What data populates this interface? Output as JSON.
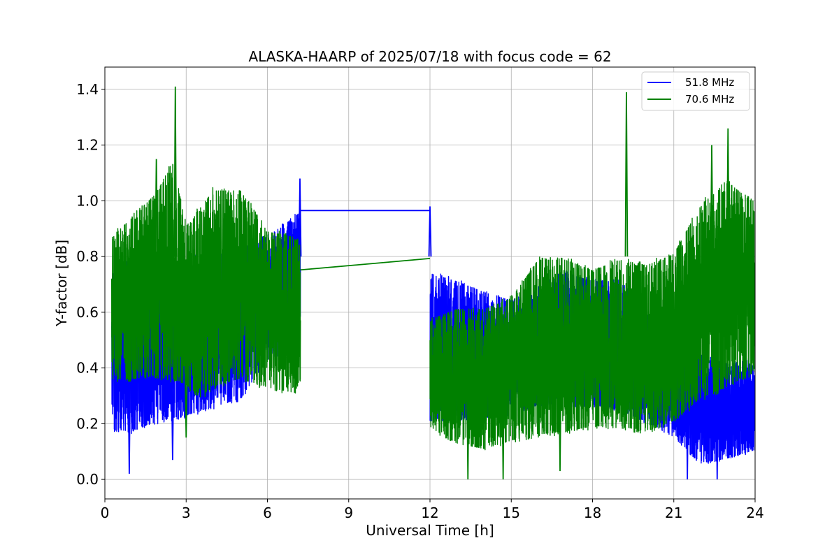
{
  "chart_data": {
    "type": "line",
    "title": "ALASKA-HAARP of 2025/07/18 with focus code = 62",
    "xlabel": "Universal Time [h]",
    "ylabel": "Y-factor [dB]",
    "xlim": [
      0,
      24
    ],
    "ylim": [
      -0.07,
      1.48
    ],
    "xticks": [
      0,
      3,
      6,
      9,
      12,
      15,
      18,
      21,
      24
    ],
    "xtick_labels": [
      "0",
      "3",
      "6",
      "9",
      "12",
      "15",
      "18",
      "21",
      "24"
    ],
    "yticks": [
      0.0,
      0.2,
      0.4,
      0.6,
      0.8,
      1.0,
      1.2,
      1.4
    ],
    "ytick_labels": [
      "0.0",
      "0.2",
      "0.4",
      "0.6",
      "0.8",
      "1.0",
      "1.2",
      "1.4"
    ],
    "grid": true,
    "legend_position": "top-right",
    "series": [
      {
        "name": "51.8 MHz",
        "color": "#0000ff",
        "segments": [
          {
            "x_start": 0.25,
            "x_end": 7.22,
            "low": [
              [
                0.25,
                0.17
              ],
              [
                1.0,
                0.16
              ],
              [
                2.0,
                0.2
              ],
              [
                3.0,
                0.22
              ],
              [
                4.0,
                0.25
              ],
              [
                5.0,
                0.28
              ],
              [
                6.0,
                0.42
              ],
              [
                7.0,
                0.48
              ],
              [
                7.22,
                0.5
              ]
            ],
            "high": [
              [
                0.25,
                0.75
              ],
              [
                1.0,
                0.8
              ],
              [
                2.0,
                0.8
              ],
              [
                3.0,
                0.8
              ],
              [
                4.0,
                0.82
              ],
              [
                5.0,
                0.84
              ],
              [
                6.0,
                0.88
              ],
              [
                7.0,
                0.95
              ],
              [
                7.22,
                0.97
              ]
            ]
          },
          {
            "x_start": 12.0,
            "x_end": 24.0,
            "low": [
              [
                12.0,
                0.2
              ],
              [
                13.0,
                0.2
              ],
              [
                14.0,
                0.22
              ],
              [
                15.0,
                0.22
              ],
              [
                16.0,
                0.26
              ],
              [
                17.0,
                0.26
              ],
              [
                18.0,
                0.26
              ],
              [
                19.0,
                0.24
              ],
              [
                20.0,
                0.2
              ],
              [
                21.0,
                0.15
              ],
              [
                22.0,
                0.05
              ],
              [
                23.0,
                0.07
              ],
              [
                24.0,
                0.1
              ]
            ],
            "high": [
              [
                12.0,
                0.75
              ],
              [
                13.0,
                0.72
              ],
              [
                14.0,
                0.68
              ],
              [
                15.0,
                0.65
              ],
              [
                16.0,
                0.7
              ],
              [
                17.0,
                0.75
              ],
              [
                18.0,
                0.72
              ],
              [
                19.0,
                0.72
              ],
              [
                20.0,
                0.6
              ],
              [
                21.0,
                0.5
              ],
              [
                22.0,
                0.46
              ],
              [
                23.0,
                0.42
              ],
              [
                24.0,
                0.44
              ]
            ]
          }
        ],
        "peaks": [
          [
            0.9,
            0.02
          ],
          [
            2.5,
            0.07
          ],
          [
            7.2,
            1.08
          ],
          [
            12.0,
            0.98
          ],
          [
            21.5,
            0.0
          ],
          [
            22.6,
            0.0
          ]
        ],
        "connector": [
          [
            7.22,
            0.965
          ],
          [
            12.0,
            0.965
          ]
        ]
      },
      {
        "name": "70.6 MHz",
        "color": "#008000",
        "segments": [
          {
            "x_start": 0.25,
            "x_end": 7.22,
            "low": [
              [
                0.25,
                0.35
              ],
              [
                1.0,
                0.35
              ],
              [
                2.0,
                0.36
              ],
              [
                3.0,
                0.33
              ],
              [
                3.5,
                0.28
              ],
              [
                4.0,
                0.32
              ],
              [
                5.0,
                0.35
              ],
              [
                6.0,
                0.32
              ],
              [
                7.0,
                0.3
              ],
              [
                7.22,
                0.35
              ]
            ],
            "high": [
              [
                0.25,
                0.88
              ],
              [
                1.0,
                0.95
              ],
              [
                2.0,
                1.05
              ],
              [
                2.5,
                1.15
              ],
              [
                3.0,
                0.92
              ],
              [
                4.0,
                1.05
              ],
              [
                5.0,
                1.05
              ],
              [
                6.0,
                0.9
              ],
              [
                7.0,
                0.88
              ],
              [
                7.22,
                0.85
              ]
            ]
          },
          {
            "x_start": 12.0,
            "x_end": 24.0,
            "low": [
              [
                12.0,
                0.18
              ],
              [
                13.0,
                0.12
              ],
              [
                14.0,
                0.1
              ],
              [
                15.0,
                0.13
              ],
              [
                16.0,
                0.15
              ],
              [
                17.0,
                0.16
              ],
              [
                18.0,
                0.18
              ],
              [
                19.0,
                0.18
              ],
              [
                20.0,
                0.16
              ],
              [
                21.0,
                0.2
              ],
              [
                22.0,
                0.28
              ],
              [
                23.0,
                0.32
              ],
              [
                24.0,
                0.38
              ]
            ],
            "high": [
              [
                12.0,
                0.58
              ],
              [
                13.0,
                0.62
              ],
              [
                14.0,
                0.62
              ],
              [
                15.0,
                0.66
              ],
              [
                16.0,
                0.8
              ],
              [
                17.0,
                0.8
              ],
              [
                18.0,
                0.76
              ],
              [
                19.0,
                0.8
              ],
              [
                20.0,
                0.78
              ],
              [
                21.0,
                0.82
              ],
              [
                22.0,
                1.0
              ],
              [
                23.0,
                1.08
              ],
              [
                24.0,
                1.0
              ]
            ]
          }
        ],
        "peaks": [
          [
            2.6,
            1.41
          ],
          [
            19.25,
            1.39
          ],
          [
            23.0,
            1.26
          ],
          [
            22.4,
            1.2
          ],
          [
            1.9,
            1.15
          ],
          [
            3.0,
            0.15
          ],
          [
            13.4,
            0.0
          ],
          [
            14.7,
            0.0
          ],
          [
            16.8,
            0.03
          ]
        ],
        "connector": [
          [
            7.22,
            0.752
          ],
          [
            12.0,
            0.793
          ]
        ]
      }
    ]
  }
}
